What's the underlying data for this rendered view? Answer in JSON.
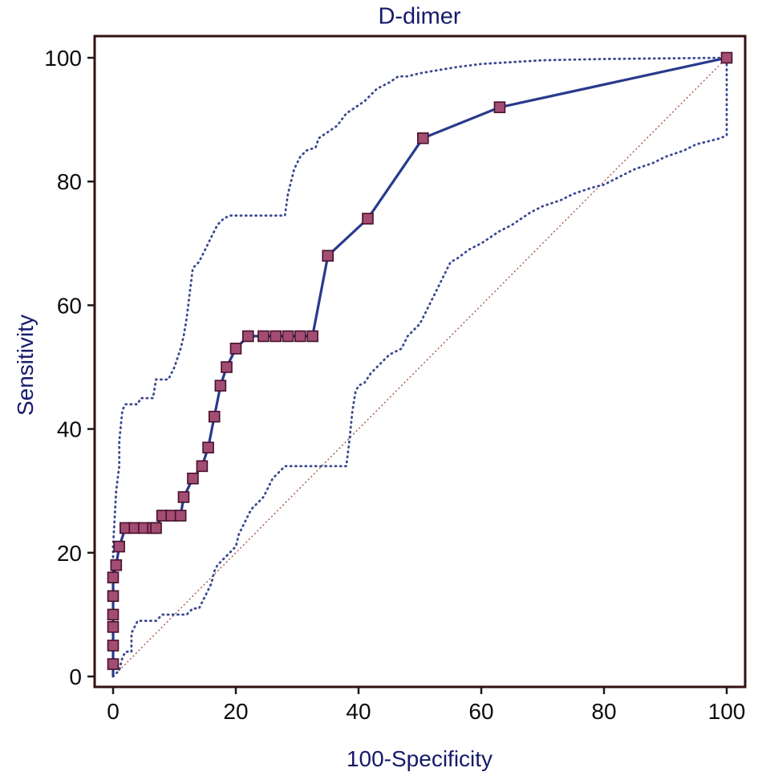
{
  "chart_data": {
    "type": "line",
    "title": "D-dimer",
    "xlabel": "100-Specificity",
    "ylabel": "Sensitivity",
    "xlim": [
      0,
      100
    ],
    "ylim": [
      0,
      100
    ],
    "x_ticks": [
      0,
      20,
      40,
      60,
      80,
      100
    ],
    "y_ticks": [
      0,
      20,
      40,
      60,
      80,
      100
    ],
    "grid": false,
    "legend": "none",
    "colors": {
      "title": "#151a6a",
      "axis_label": "#151a6a",
      "tick_label": "#0d0d0d",
      "frame": "#33100f",
      "tick": "#1a1a1a",
      "roc_line": "#283a8c",
      "marker_fill": "#a34d72",
      "marker_stroke": "#47102e",
      "ci_line": "#3a4890",
      "reference_line": "#9e4b3b"
    },
    "series": [
      {
        "id": "reference-diagonal",
        "name": "Chance reference line",
        "color": "#9e4b3b",
        "width": 1.3,
        "dash": "2 3",
        "points": [
          [
            0,
            0
          ],
          [
            100,
            100
          ]
        ]
      },
      {
        "id": "ci-upper",
        "name": "95% CI upper bound",
        "color": "#3a4890",
        "width": 2.8,
        "dash": "1 5.2",
        "linecap": "round",
        "points": [
          [
            0,
            0
          ],
          [
            0,
            21
          ],
          [
            0.5,
            30
          ],
          [
            1,
            34
          ],
          [
            1,
            38
          ],
          [
            1.5,
            43
          ],
          [
            2,
            44
          ],
          [
            4,
            44
          ],
          [
            4.5,
            45
          ],
          [
            6.5,
            45
          ],
          [
            7,
            48
          ],
          [
            9,
            48
          ],
          [
            9.5,
            49
          ],
          [
            10,
            50
          ],
          [
            11,
            53
          ],
          [
            11.5,
            55
          ],
          [
            12,
            58
          ],
          [
            12.5,
            62
          ],
          [
            13,
            66
          ],
          [
            14,
            67
          ],
          [
            15,
            69
          ],
          [
            16,
            71
          ],
          [
            17,
            73
          ],
          [
            18,
            74
          ],
          [
            19,
            74.5
          ],
          [
            28,
            74.5
          ],
          [
            28.5,
            78
          ],
          [
            29.5,
            82
          ],
          [
            30.5,
            84
          ],
          [
            31.5,
            85
          ],
          [
            33,
            85.5
          ],
          [
            33.5,
            87
          ],
          [
            35,
            88
          ],
          [
            36.5,
            89
          ],
          [
            38,
            91
          ],
          [
            39.5,
            92
          ],
          [
            41,
            93
          ],
          [
            43,
            95
          ],
          [
            45,
            96
          ],
          [
            46.5,
            97
          ],
          [
            48,
            97
          ],
          [
            50,
            97.5
          ],
          [
            53,
            98
          ],
          [
            56,
            98.5
          ],
          [
            60,
            99
          ],
          [
            65,
            99.3
          ],
          [
            70,
            99.6
          ],
          [
            80,
            99.8
          ],
          [
            100,
            100
          ]
        ]
      },
      {
        "id": "ci-lower",
        "name": "95% CI lower bound",
        "color": "#3a4890",
        "width": 2.8,
        "dash": "1 5.2",
        "linecap": "round",
        "points": [
          [
            0,
            0
          ],
          [
            1,
            1
          ],
          [
            1.5,
            3
          ],
          [
            2,
            4
          ],
          [
            3,
            4
          ],
          [
            3,
            7
          ],
          [
            3.5,
            8
          ],
          [
            4,
            9
          ],
          [
            7,
            9
          ],
          [
            7.5,
            9.5
          ],
          [
            8,
            10
          ],
          [
            12,
            10
          ],
          [
            12.5,
            10.5
          ],
          [
            13,
            11
          ],
          [
            14,
            11
          ],
          [
            15,
            13
          ],
          [
            16,
            15
          ],
          [
            16.5,
            17
          ],
          [
            17,
            18
          ],
          [
            18,
            19
          ],
          [
            19,
            20
          ],
          [
            20,
            21
          ],
          [
            20.5,
            23
          ],
          [
            21,
            24
          ],
          [
            22,
            26
          ],
          [
            22.5,
            27
          ],
          [
            23.5,
            28
          ],
          [
            24.5,
            29
          ],
          [
            25,
            30
          ],
          [
            26,
            32
          ],
          [
            27,
            33
          ],
          [
            28,
            34
          ],
          [
            38,
            34
          ],
          [
            38.5,
            38
          ],
          [
            39,
            43
          ],
          [
            39.5,
            46
          ],
          [
            40,
            47
          ],
          [
            41,
            47.5
          ],
          [
            42,
            49
          ],
          [
            43,
            50
          ],
          [
            44,
            51
          ],
          [
            45,
            52
          ],
          [
            46,
            52.5
          ],
          [
            47,
            53
          ],
          [
            48,
            55
          ],
          [
            50,
            57
          ],
          [
            51,
            59
          ],
          [
            52,
            61
          ],
          [
            53,
            63
          ],
          [
            54,
            65
          ],
          [
            55,
            67
          ],
          [
            56,
            67.5
          ],
          [
            58,
            69
          ],
          [
            60,
            70
          ],
          [
            63,
            72
          ],
          [
            65,
            73
          ],
          [
            68,
            75
          ],
          [
            70,
            76
          ],
          [
            73,
            77
          ],
          [
            75,
            78
          ],
          [
            78,
            79
          ],
          [
            80,
            79.5
          ],
          [
            83,
            81
          ],
          [
            85,
            82
          ],
          [
            88,
            83
          ],
          [
            90,
            84
          ],
          [
            93,
            85
          ],
          [
            95,
            86
          ],
          [
            97,
            86.5
          ],
          [
            99,
            87
          ],
          [
            100,
            87.5
          ],
          [
            100,
            100
          ]
        ]
      },
      {
        "id": "roc-curve",
        "name": "D-dimer ROC curve",
        "color": "#283a8c",
        "width": 3.2,
        "marker": "square",
        "marker_size": 13,
        "marker_fill": "#a34d72",
        "marker_stroke": "#47102e",
        "marker_skip_first": true,
        "points": [
          [
            0,
            0
          ],
          [
            0,
            2
          ],
          [
            0,
            5
          ],
          [
            0,
            8
          ],
          [
            0,
            10
          ],
          [
            0,
            13
          ],
          [
            0,
            16
          ],
          [
            0.5,
            18
          ],
          [
            1,
            21
          ],
          [
            2,
            24
          ],
          [
            3.5,
            24
          ],
          [
            5,
            24
          ],
          [
            6.5,
            24
          ],
          [
            7,
            24
          ],
          [
            8,
            26
          ],
          [
            9.5,
            26
          ],
          [
            11,
            26
          ],
          [
            11.5,
            29
          ],
          [
            13,
            32
          ],
          [
            14.5,
            34
          ],
          [
            15.5,
            37
          ],
          [
            16.5,
            42
          ],
          [
            17.5,
            47
          ],
          [
            18.5,
            50
          ],
          [
            20,
            53
          ],
          [
            22,
            55
          ],
          [
            24.5,
            55
          ],
          [
            26.5,
            55
          ],
          [
            28.5,
            55
          ],
          [
            30.5,
            55
          ],
          [
            32.5,
            55
          ],
          [
            35,
            68
          ],
          [
            41.5,
            74
          ],
          [
            50.5,
            87
          ],
          [
            63,
            92
          ],
          [
            100,
            100
          ]
        ]
      }
    ]
  }
}
